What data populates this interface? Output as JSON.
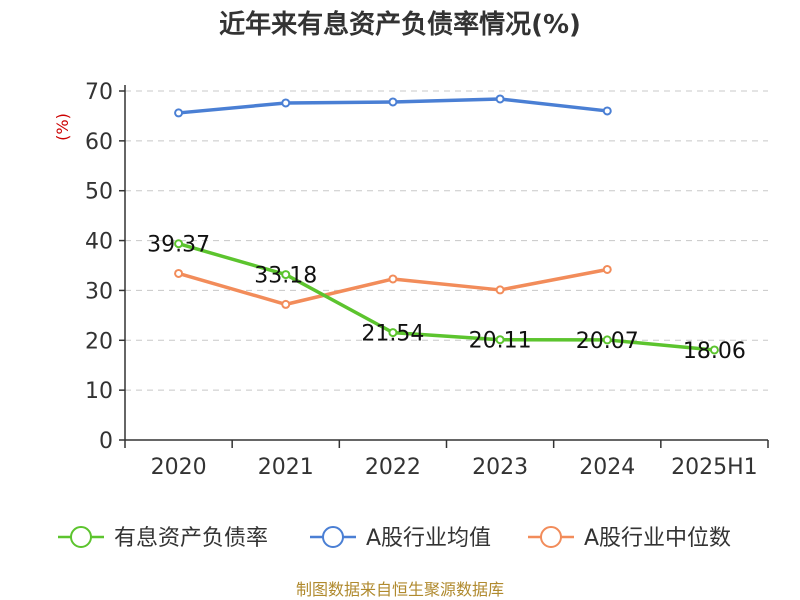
{
  "chart_data": {
    "type": "line",
    "title": "近年来有息资产负债率情况(%)",
    "ylabel": "(%)",
    "xlabel": "",
    "categories": [
      "2020",
      "2021",
      "2022",
      "2023",
      "2024",
      "2025H1"
    ],
    "ylim": [
      0,
      70
    ],
    "yticks": [
      0,
      10,
      20,
      30,
      40,
      50,
      60,
      70
    ],
    "grid": true,
    "legend_position": "bottom",
    "series": [
      {
        "name": "有息资产负债率",
        "color": "#5cc42e",
        "values": [
          39.37,
          33.18,
          21.54,
          20.11,
          20.07,
          18.06
        ],
        "labels": [
          "39.37",
          "33.18",
          "21.54",
          "20.11",
          "20.07",
          "18.06"
        ]
      },
      {
        "name": "A股行业均值",
        "color": "#4a7fd4",
        "values": [
          65.6,
          67.6,
          67.8,
          68.4,
          66.0,
          null
        ]
      },
      {
        "name": "A股行业中位数",
        "color": "#f28c5a",
        "values": [
          33.4,
          27.2,
          32.3,
          30.1,
          34.2,
          null
        ]
      }
    ],
    "source": "制图数据来自恒生聚源数据库"
  }
}
